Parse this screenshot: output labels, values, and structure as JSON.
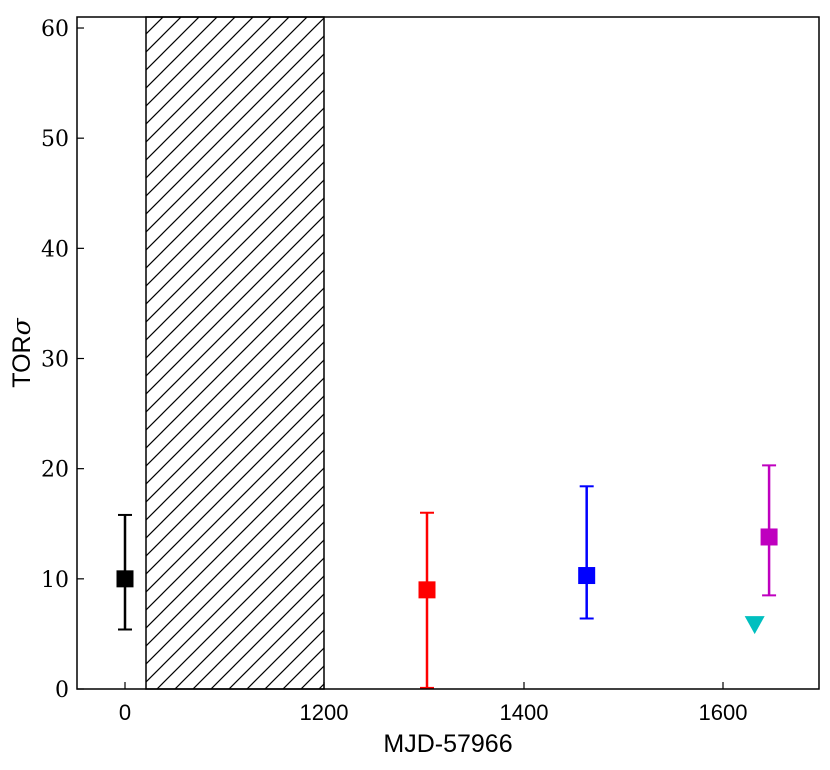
{
  "chart_data": {
    "type": "scatter",
    "xlabel": "MJD-57966",
    "ylabel_main": "TOR",
    "ylabel_symbol": "σ",
    "ylim": [
      0,
      61
    ],
    "y_ticks": [
      "0",
      "10",
      "20",
      "30",
      "40",
      "50",
      "60"
    ],
    "x_ticks": [
      {
        "label": "0",
        "value": 0
      },
      {
        "label": "1200",
        "value": 1200
      },
      {
        "label": "1400",
        "value": 1400
      },
      {
        "label": "1600",
        "value": 1600
      }
    ],
    "axis_break": {
      "from": 20,
      "to": 1200,
      "pattern": "hatched"
    },
    "points": [
      {
        "x": 0,
        "y": 10.0,
        "yerr_low": 5.4,
        "yerr_high": 15.8,
        "marker": "square",
        "color": "#000000"
      },
      {
        "x": 1303,
        "y": 9.0,
        "yerr_low": 0.1,
        "yerr_high": 16.0,
        "marker": "square",
        "color": "#ff0000"
      },
      {
        "x": 1463,
        "y": 10.3,
        "yerr_low": 6.4,
        "yerr_high": 18.4,
        "marker": "square",
        "color": "#0000ff"
      },
      {
        "x": 1648,
        "y": 13.8,
        "yerr_low": 8.5,
        "yerr_high": 20.3,
        "marker": "square",
        "color": "#bf00bf"
      },
      {
        "x": 1633,
        "y": 5.8,
        "marker": "triangle-down",
        "color": "#00bfbf"
      }
    ]
  }
}
